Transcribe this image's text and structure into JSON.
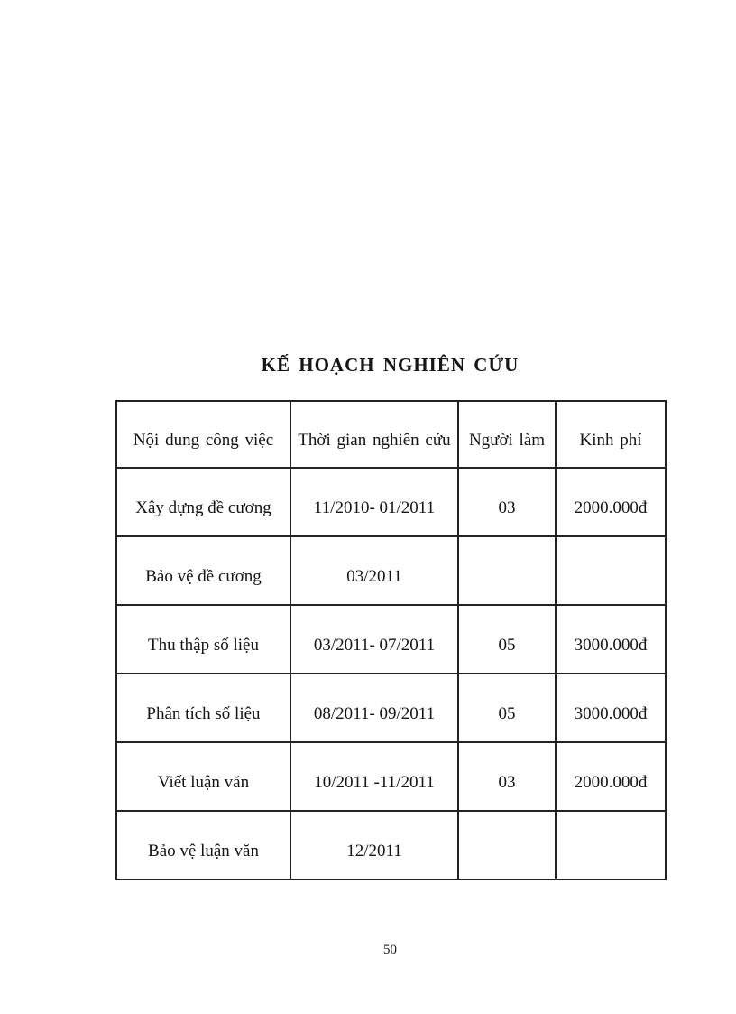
{
  "page": {
    "title": "KẾ HOẠCH NGHIÊN CỨU",
    "page_number": "50"
  },
  "table": {
    "columns": [
      "Nội dung công việc",
      "Thời gian nghiên cứu",
      "Người làm",
      "Kinh phí"
    ],
    "rows": [
      [
        "Xây dựng đề cương",
        "11/2010- 01/2011",
        "03",
        "2000.000đ"
      ],
      [
        "Bảo vệ đề cương",
        "03/2011",
        "",
        ""
      ],
      [
        "Thu thập số liệu",
        "03/2011- 07/2011",
        "05",
        "3000.000đ"
      ],
      [
        "Phân tích số liệu",
        "08/2011- 09/2011",
        "05",
        "3000.000đ"
      ],
      [
        "Viết luận văn",
        "10/2011 -11/2011",
        "03",
        "2000.000đ"
      ],
      [
        "Bảo vệ luận văn",
        "12/2011",
        "",
        ""
      ]
    ]
  }
}
